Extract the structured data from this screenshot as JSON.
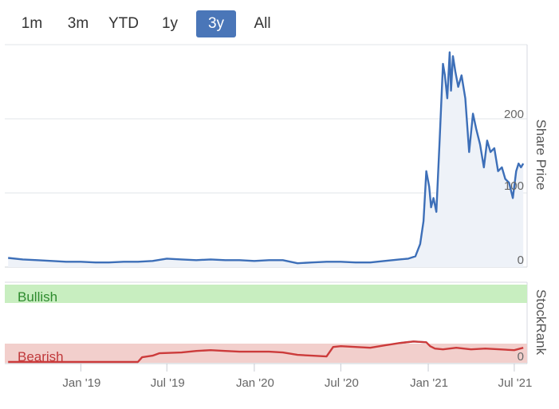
{
  "range_selector": {
    "buttons": [
      "1m",
      "3m",
      "YTD",
      "1y",
      "3y",
      "All"
    ],
    "active": "3y"
  },
  "chart_data": [
    {
      "type": "line",
      "name": "price-panel",
      "ylabel": "Share Price",
      "ylim": [
        0,
        290
      ],
      "y_ticks": [
        0,
        100,
        200
      ],
      "grid": true,
      "color": "#3d6fb8",
      "fill": "#eef2f8",
      "series": [
        {
          "name": "",
          "x": [
            "2018-08-01",
            "2018-09-01",
            "2018-10-01",
            "2018-11-01",
            "2018-12-01",
            "2019-01-01",
            "2019-02-01",
            "2019-03-01",
            "2019-04-01",
            "2019-05-01",
            "2019-06-01",
            "2019-07-01",
            "2019-08-01",
            "2019-09-01",
            "2019-10-01",
            "2019-11-01",
            "2019-12-01",
            "2020-01-01",
            "2020-02-01",
            "2020-03-01",
            "2020-04-01",
            "2020-05-01",
            "2020-06-01",
            "2020-07-01",
            "2020-08-01",
            "2020-09-01",
            "2020-10-01",
            "2020-11-01",
            "2020-11-20",
            "2020-12-05",
            "2020-12-15",
            "2020-12-22",
            "2020-12-28",
            "2021-01-03",
            "2021-01-07",
            "2021-01-12",
            "2021-01-18",
            "2021-01-25",
            "2021-02-01",
            "2021-02-05",
            "2021-02-10",
            "2021-02-15",
            "2021-02-18",
            "2021-02-22",
            "2021-02-27",
            "2021-03-05",
            "2021-03-12",
            "2021-03-20",
            "2021-03-28",
            "2021-04-05",
            "2021-04-12",
            "2021-04-20",
            "2021-04-28",
            "2021-05-05",
            "2021-05-12",
            "2021-05-20",
            "2021-05-28",
            "2021-06-05",
            "2021-06-12",
            "2021-06-20",
            "2021-06-28",
            "2021-07-05",
            "2021-07-10",
            "2021-07-15",
            "2021-07-20"
          ],
          "values": [
            12,
            10,
            9,
            8,
            7,
            7,
            6,
            6,
            7,
            7,
            8,
            11,
            10,
            9,
            10,
            9,
            9,
            8,
            9,
            9,
            5,
            6,
            7,
            7,
            6,
            6,
            8,
            10,
            11,
            14,
            30,
            60,
            125,
            105,
            78,
            90,
            72,
            165,
            265,
            250,
            220,
            280,
            230,
            275,
            255,
            235,
            250,
            220,
            150,
            200,
            180,
            160,
            130,
            165,
            150,
            155,
            125,
            130,
            115,
            110,
            90,
            125,
            135,
            130,
            135
          ]
        }
      ]
    },
    {
      "type": "line",
      "name": "stockrank-panel",
      "ylabel": "StockRank",
      "y_ticks": [
        0
      ],
      "bands": [
        {
          "label": "Bullish",
          "color": "#c8eec0",
          "text_color": "#2e8b2e"
        },
        {
          "label": "Bearish",
          "color": "#f2cfcc",
          "text_color": "#c0393b"
        }
      ],
      "x_tick_labels": [
        "Jan '19",
        "Jul '19",
        "Jan '20",
        "Jul '20",
        "Jan '21",
        "Jul '21"
      ],
      "color": "#cc3b3b",
      "secondary_color": "#8a9ab6",
      "series": [
        {
          "name": "",
          "x": [
            "2018-08-01",
            "2018-10-01",
            "2018-12-01",
            "2019-02-01",
            "2019-04-01",
            "2019-05-01",
            "2019-05-10",
            "2019-06-01",
            "2019-06-15",
            "2019-08-01",
            "2019-09-01",
            "2019-10-01",
            "2019-11-01",
            "2019-12-01",
            "2020-01-01",
            "2020-02-01",
            "2020-03-01",
            "2020-04-01",
            "2020-05-01",
            "2020-06-01",
            "2020-06-15",
            "2020-07-01",
            "2020-08-01",
            "2020-09-01",
            "2020-10-01",
            "2020-11-01",
            "2020-12-01",
            "2020-12-28",
            "2021-01-05",
            "2021-01-15",
            "2021-02-01",
            "2021-03-01",
            "2021-04-01",
            "2021-05-01",
            "2021-06-01",
            "2021-07-01",
            "2021-07-20"
          ],
          "values": [
            2,
            2,
            2,
            2,
            2,
            2,
            8,
            10,
            13,
            14,
            16,
            17,
            16,
            15,
            15,
            15,
            14,
            11,
            10,
            9,
            21,
            22,
            21,
            20,
            23,
            26,
            28,
            27,
            22,
            19,
            18,
            20,
            18,
            19,
            18,
            17,
            20
          ]
        }
      ]
    }
  ]
}
